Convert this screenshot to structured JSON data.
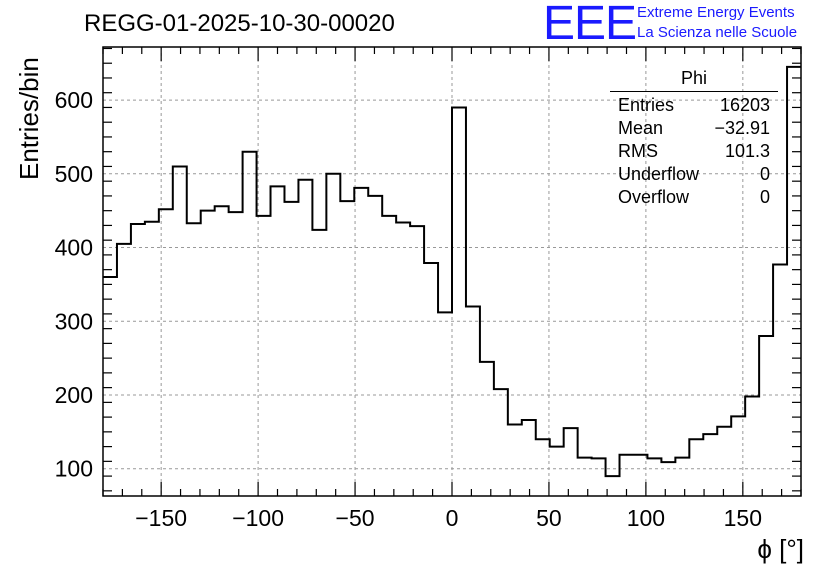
{
  "header": {
    "title": "REGG-01-2025-10-30-00020",
    "logo_text": "EEE",
    "logo_line1": "Extreme Energy Events",
    "logo_line2": "La Scienza nelle Scuole"
  },
  "stats_box": {
    "title": "Phi",
    "rows": [
      {
        "label": "Entries",
        "value": "16203"
      },
      {
        "label": "Mean",
        "value": "−32.91"
      },
      {
        "label": "RMS",
        "value": "101.3"
      },
      {
        "label": "Underflow",
        "value": "0"
      },
      {
        "label": "Overflow",
        "value": "0"
      }
    ]
  },
  "chart_data": {
    "type": "bar",
    "style": "step-histogram",
    "title": "REGG-01-2025-10-30-00020",
    "xlabel": "ϕ [°]",
    "ylabel": "Entries/bin",
    "xlim": [
      -180,
      180
    ],
    "ylim": [
      63,
      672
    ],
    "bin_width": 7.2,
    "x_ticks": [
      -150,
      -100,
      -50,
      0,
      50,
      100,
      150
    ],
    "x_tick_labels": [
      "−150",
      "−100",
      "−50",
      "0",
      "50",
      "100",
      "150"
    ],
    "y_ticks": [
      100,
      200,
      300,
      400,
      500,
      600
    ],
    "y_tick_labels": [
      "100",
      "200",
      "300",
      "400",
      "500",
      "600"
    ],
    "grid": true,
    "line_color": "#000000",
    "values": [
      360,
      405,
      432,
      435,
      452,
      510,
      433,
      450,
      456,
      448,
      530,
      443,
      483,
      462,
      492,
      424,
      500,
      463,
      481,
      470,
      443,
      434,
      429,
      379,
      312,
      590,
      320,
      245,
      208,
      160,
      166,
      140,
      130,
      155,
      115,
      114,
      90,
      119,
      119,
      114,
      109,
      115,
      140,
      147,
      157,
      171,
      198,
      280,
      377,
      645
    ]
  }
}
